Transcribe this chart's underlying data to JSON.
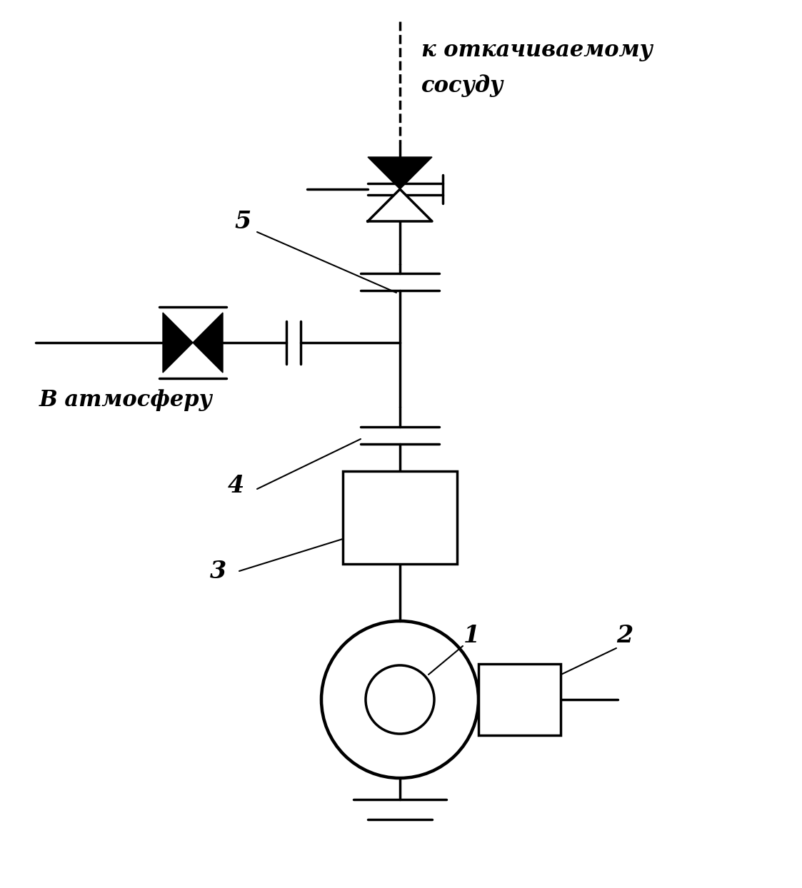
{
  "bg_color": "#ffffff",
  "line_color": "#000000",
  "lw": 2.5,
  "lw_thin": 1.5,
  "title_line1": "к откачиваемому",
  "title_line2": "сосуду",
  "label_atm": "В атмосферу",
  "label1": "1",
  "label2": "2",
  "label3": "3",
  "label4": "4",
  "label5": "5",
  "fig_w": 11.23,
  "fig_h": 12.44,
  "dpi": 100
}
